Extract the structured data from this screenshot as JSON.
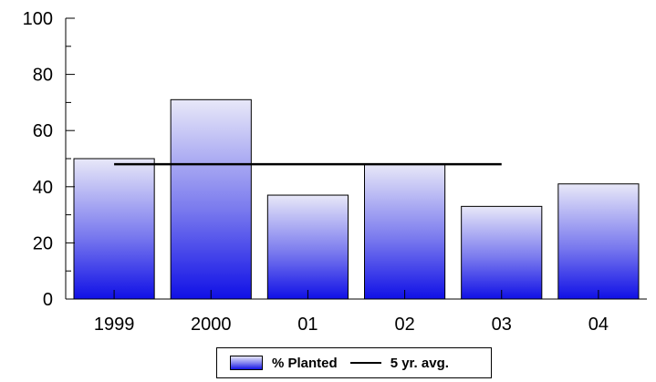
{
  "chart_data": {
    "type": "bar",
    "categories": [
      "1999",
      "2000",
      "01",
      "02",
      "03",
      "04"
    ],
    "series": [
      {
        "name": "% Planted",
        "values": [
          50,
          71,
          37,
          48,
          33,
          41
        ]
      },
      {
        "name": "5 yr. avg.",
        "type": "line",
        "value": 48,
        "span": [
          "1999",
          "03"
        ]
      }
    ],
    "y_ticks": [
      "0",
      "20",
      "40",
      "60",
      "80",
      "100"
    ],
    "ylim": [
      0,
      100
    ],
    "grid": false,
    "legend_position": "bottom-center",
    "colors": {
      "bar_top": "#e8e8f8",
      "bar_bottom": "#1010e6",
      "line": "#000000",
      "axis": "#000000"
    }
  },
  "legend": {
    "bar_label": "% Planted",
    "line_label": "5 yr. avg."
  }
}
